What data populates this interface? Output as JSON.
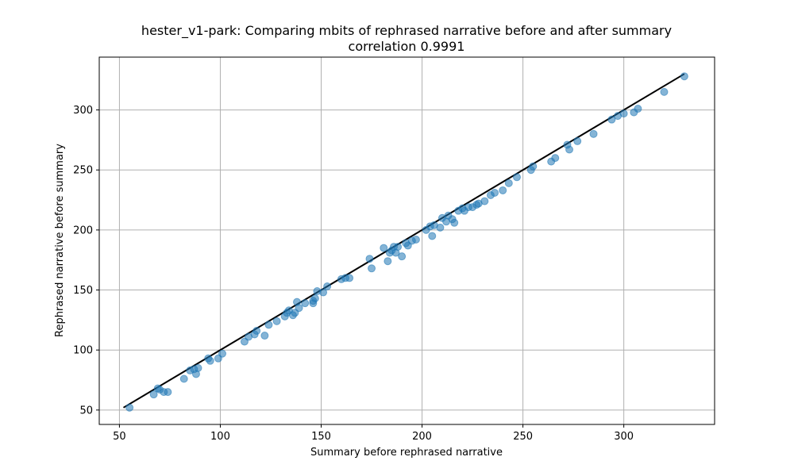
{
  "chart_data": {
    "type": "scatter",
    "title": "hester_v1-park: Comparing mbits of rephrased narrative before and after summary",
    "subtitle": "correlation 0.9991",
    "xlabel": "Summary before rephrased narrative",
    "ylabel": "Rephrased narrative before summary",
    "xlim": [
      40,
      345
    ],
    "ylim": [
      38,
      344
    ],
    "xticks": [
      50,
      100,
      150,
      200,
      250,
      300
    ],
    "yticks": [
      50,
      100,
      150,
      200,
      250,
      300
    ],
    "grid": true,
    "point_color": "#1f77b4",
    "line_color": "#000000",
    "fit_line": {
      "x": [
        52,
        330
      ],
      "y": [
        52,
        330
      ]
    },
    "points": [
      [
        55,
        52
      ],
      [
        67,
        63
      ],
      [
        69,
        68
      ],
      [
        70,
        67
      ],
      [
        72,
        65
      ],
      [
        74,
        65
      ],
      [
        82,
        76
      ],
      [
        85,
        83
      ],
      [
        87,
        84
      ],
      [
        88,
        80
      ],
      [
        89,
        85
      ],
      [
        94,
        93
      ],
      [
        95,
        91
      ],
      [
        99,
        93
      ],
      [
        101,
        97
      ],
      [
        112,
        107
      ],
      [
        114,
        111
      ],
      [
        117,
        113
      ],
      [
        118,
        116
      ],
      [
        122,
        112
      ],
      [
        124,
        121
      ],
      [
        128,
        124
      ],
      [
        132,
        128
      ],
      [
        133,
        131
      ],
      [
        134,
        133
      ],
      [
        136,
        129
      ],
      [
        137,
        131
      ],
      [
        138,
        140
      ],
      [
        139,
        135
      ],
      [
        142,
        139
      ],
      [
        146,
        139
      ],
      [
        146,
        141
      ],
      [
        147,
        143
      ],
      [
        148,
        149
      ],
      [
        151,
        148
      ],
      [
        153,
        153
      ],
      [
        160,
        159
      ],
      [
        162,
        160
      ],
      [
        164,
        160
      ],
      [
        174,
        176
      ],
      [
        175,
        168
      ],
      [
        181,
        185
      ],
      [
        183,
        174
      ],
      [
        184,
        181
      ],
      [
        185,
        183
      ],
      [
        186,
        186
      ],
      [
        187,
        181
      ],
      [
        188,
        186
      ],
      [
        190,
        178
      ],
      [
        192,
        189
      ],
      [
        193,
        187
      ],
      [
        195,
        191
      ],
      [
        197,
        192
      ],
      [
        202,
        200
      ],
      [
        204,
        203
      ],
      [
        205,
        195
      ],
      [
        206,
        204
      ],
      [
        209,
        202
      ],
      [
        210,
        210
      ],
      [
        212,
        207
      ],
      [
        213,
        212
      ],
      [
        215,
        209
      ],
      [
        216,
        206
      ],
      [
        218,
        216
      ],
      [
        220,
        218
      ],
      [
        221,
        216
      ],
      [
        223,
        219
      ],
      [
        225,
        219
      ],
      [
        227,
        221
      ],
      [
        228,
        222
      ],
      [
        231,
        224
      ],
      [
        234,
        229
      ],
      [
        236,
        231
      ],
      [
        240,
        233
      ],
      [
        243,
        239
      ],
      [
        247,
        244
      ],
      [
        254,
        250
      ],
      [
        255,
        253
      ],
      [
        264,
        257
      ],
      [
        266,
        260
      ],
      [
        272,
        271
      ],
      [
        273,
        267
      ],
      [
        277,
        274
      ],
      [
        285,
        280
      ],
      [
        294,
        292
      ],
      [
        297,
        295
      ],
      [
        300,
        297
      ],
      [
        305,
        298
      ],
      [
        307,
        301
      ],
      [
        320,
        315
      ],
      [
        330,
        328
      ]
    ]
  }
}
